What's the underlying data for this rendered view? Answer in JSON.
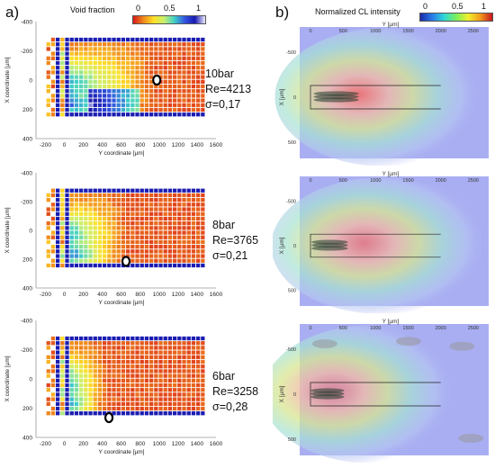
{
  "figure": {
    "panel_a_letter": "a)",
    "panel_b_letter": "b)",
    "void_colorbar": {
      "title": "Void fraction",
      "ticks": [
        "0",
        "0.5",
        "1"
      ]
    },
    "cl_colorbar": {
      "title": "Normalized CL intensity",
      "ticks": [
        "0",
        "0.5",
        "1"
      ]
    }
  },
  "axes_a": {
    "x_label": "Y coordinate [µm]",
    "y_label": "X coordinate [µm]",
    "x_ticks": [
      "-200",
      "0",
      "200",
      "400",
      "600",
      "800",
      "1000",
      "1200",
      "1400",
      "1600"
    ],
    "y_ticks": [
      "-400",
      "-200",
      "0",
      "200",
      "400"
    ]
  },
  "axes_b": {
    "x_label": "Y [µm]",
    "y_label": "X [µm]",
    "x_ticks": [
      "0",
      "500",
      "1000",
      "1500",
      "2000",
      "2500"
    ],
    "y_ticks": [
      "-500",
      "0",
      "500"
    ]
  },
  "cases": [
    {
      "pressure": "10bar",
      "re": "Re=4213",
      "sigma": "σ=0,17",
      "marker_y_um": 975,
      "marker_x_um": 0
    },
    {
      "pressure": "8bar",
      "re": "Re=3765",
      "sigma": "σ=0,21",
      "marker_y_um": 650,
      "marker_x_um": 215
    },
    {
      "pressure": "6bar",
      "re": "Re=3258",
      "sigma": "σ=0,28",
      "marker_y_um": 470,
      "marker_x_um": 265
    }
  ],
  "colors": {
    "void_scale": [
      "#d7191c",
      "#f08a1c",
      "#ffe028",
      "#c8f06e",
      "#3fd0c8",
      "#3355e0",
      "#1a1ab0",
      "#eeeeff"
    ],
    "cl_background": "#a9aef2",
    "cl_core": "#f06d6d"
  }
}
